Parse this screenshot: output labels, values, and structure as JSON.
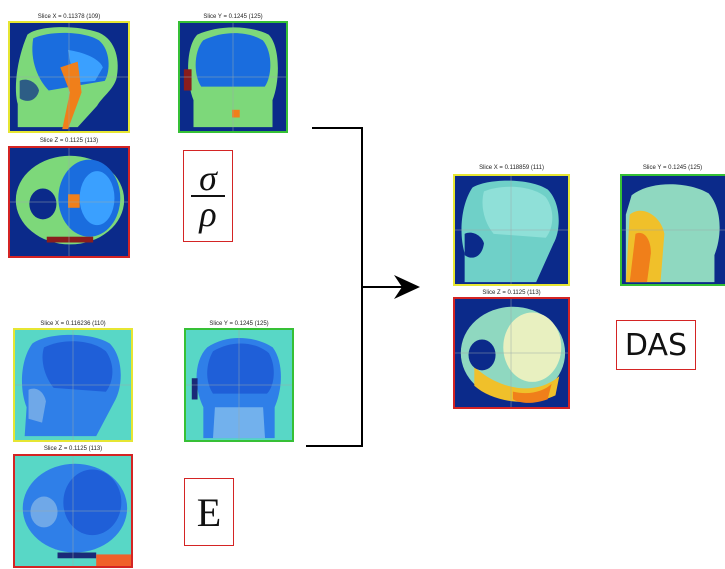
{
  "colors": {
    "frame_x": "#e6e633",
    "frame_y": "#36c036",
    "frame_z": "#d42424",
    "label_border": "#d42424",
    "arrow": "#000000"
  },
  "inputs": {
    "sigma_rho": {
      "slice_x_caption": "Slice X = 0.11378 (109)",
      "slice_y_caption": "Slice Y = 0.1245 (125)",
      "slice_z_caption": "Slice Z = 0.1125 (113)",
      "label_numerator": "σ",
      "label_denominator": "ρ"
    },
    "elastic": {
      "slice_x_caption": "Slice X = 0.116236 (110)",
      "slice_y_caption": "Slice Y = 0.1245 (125)",
      "slice_z_caption": "Slice Z = 0.1125 (113)",
      "label": "E"
    }
  },
  "output": {
    "slice_x_caption": "Slice X = 0.118859 (111)",
    "slice_y_caption": "Slice Y = 0.1245 (125)",
    "slice_z_caption": "Slice Z = 0.1125 (113)",
    "label": "DAS"
  }
}
